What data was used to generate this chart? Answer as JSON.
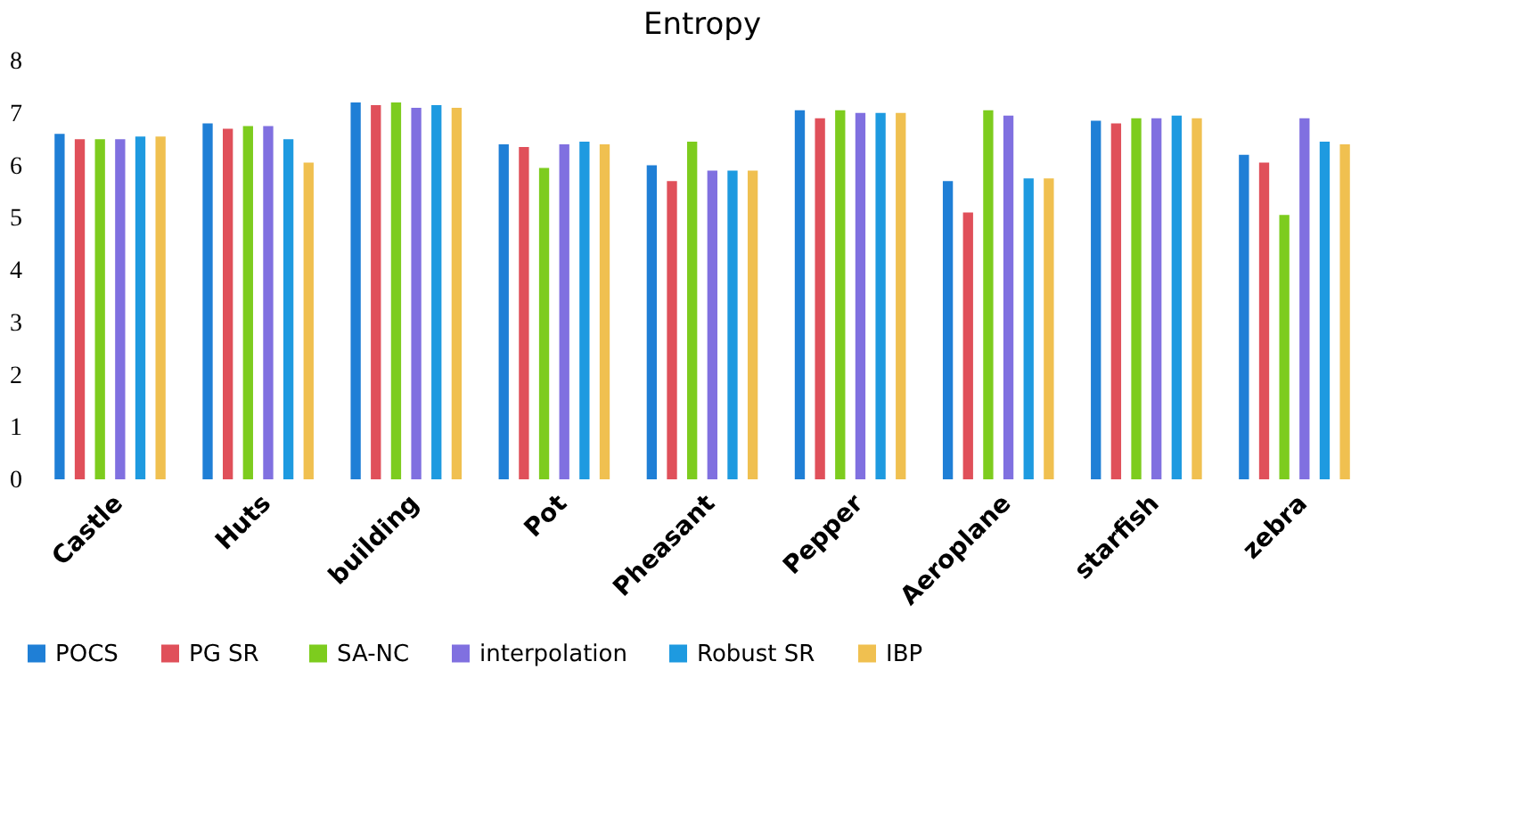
{
  "chart_data": {
    "type": "bar",
    "title": "Entropy",
    "categories": [
      "Castle",
      "Huts",
      "building",
      "Pot",
      "Pheasant",
      "Pepper",
      "Aeroplane",
      "starfish",
      "zebra"
    ],
    "series": [
      {
        "name": "POCS",
        "color": "#1f7fd6",
        "values": [
          6.6,
          6.8,
          7.2,
          6.4,
          6.0,
          7.05,
          5.7,
          6.85,
          6.2
        ]
      },
      {
        "name": "PG  SR",
        "color": "#e0505a",
        "values": [
          6.5,
          6.7,
          7.15,
          6.35,
          5.7,
          6.9,
          5.1,
          6.8,
          6.05
        ]
      },
      {
        "name": "SA-NC",
        "color": "#7dcc1e",
        "values": [
          6.5,
          6.75,
          7.2,
          5.95,
          6.45,
          7.05,
          7.05,
          6.9,
          5.05
        ]
      },
      {
        "name": "interpolation",
        "color": "#8070e0",
        "values": [
          6.5,
          6.75,
          7.1,
          6.4,
          5.9,
          7.0,
          6.95,
          6.9,
          6.9
        ]
      },
      {
        "name": "Robust SR",
        "color": "#1e9ae0",
        "values": [
          6.55,
          6.5,
          7.15,
          6.45,
          5.9,
          7.0,
          5.75,
          6.95,
          6.45
        ]
      },
      {
        "name": "IBP",
        "color": "#f0c050",
        "values": [
          6.55,
          6.05,
          7.1,
          6.4,
          5.9,
          7.0,
          5.75,
          6.9,
          6.4
        ]
      }
    ],
    "ylim": [
      0,
      8
    ],
    "yticks": [
      0,
      1,
      2,
      3,
      4,
      5,
      6,
      7,
      8
    ],
    "grid": false,
    "legend": "bottom"
  }
}
